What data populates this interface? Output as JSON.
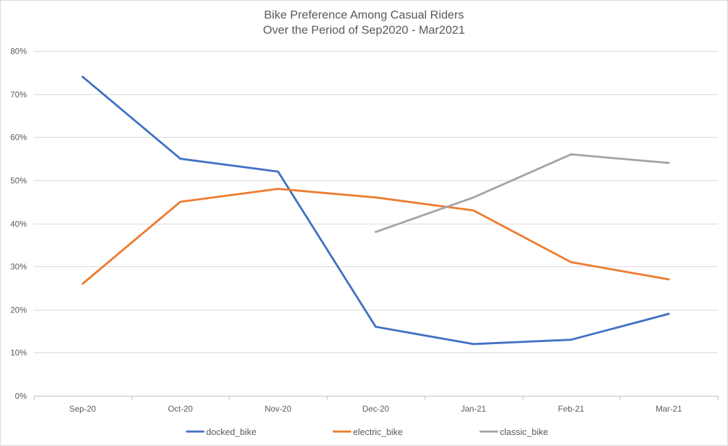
{
  "chart_data": {
    "type": "line",
    "title_line1": "Bike Preference Among Casual Riders",
    "title_line2": "Over the Period of Sep2020 - Mar2021",
    "xlabel": "",
    "ylabel": "",
    "categories": [
      "Sep-20",
      "Oct-20",
      "Nov-20",
      "Dec-20",
      "Jan-21",
      "Feb-21",
      "Mar-21"
    ],
    "ylim": [
      0,
      80
    ],
    "yticks": [
      0,
      10,
      20,
      30,
      40,
      50,
      60,
      70,
      80
    ],
    "ytick_labels": [
      "0%",
      "10%",
      "20%",
      "30%",
      "40%",
      "50%",
      "60%",
      "70%",
      "80%"
    ],
    "grid": "horizontal",
    "legend_position": "bottom",
    "series": [
      {
        "name": "docked_bike",
        "color": "#4472c4",
        "values": [
          74,
          55,
          52,
          16,
          12,
          13,
          19
        ]
      },
      {
        "name": "electric_bike",
        "color": "#ed7d31",
        "values": [
          26,
          45,
          48,
          46,
          43,
          31,
          27
        ]
      },
      {
        "name": "classic_bike",
        "color": "#a5a5a5",
        "values": [
          null,
          null,
          null,
          38,
          46,
          56,
          54
        ]
      }
    ]
  }
}
